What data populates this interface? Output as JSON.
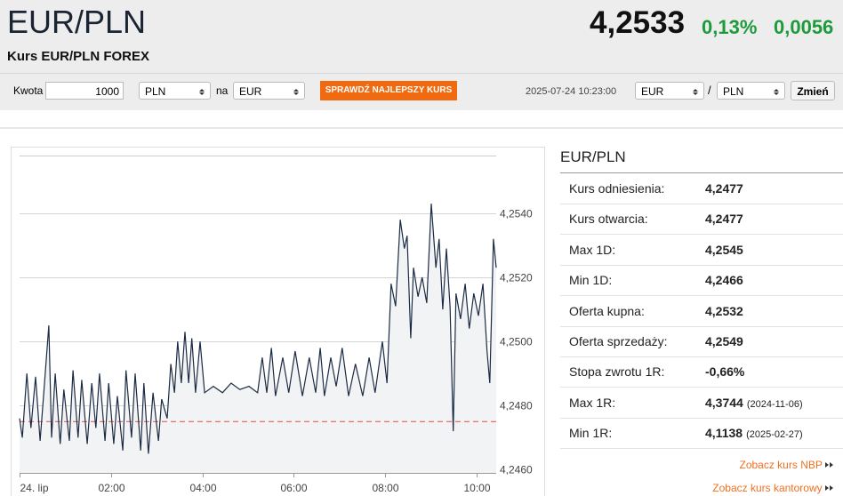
{
  "header": {
    "title": "EUR/PLN",
    "subtitle": "Kurs EUR/PLN FOREX",
    "price": "4,2533",
    "change_pct": "0,13%",
    "change": "0,0056"
  },
  "toolbar": {
    "amount_label": "Kwota",
    "amount": "1000",
    "from": "PLN",
    "to_label": "na",
    "to": "EUR",
    "button": "SPRAWDŹ NAJLEPSZY KURS",
    "timestamp": "2025-07-24 10:23:00",
    "pair_base": "EUR",
    "separator": "/",
    "pair_quote": "PLN",
    "switch_button": "Zmień"
  },
  "chart_data": {
    "type": "line",
    "color": "#1c2b44",
    "area_color": "#f2f3f5",
    "grid": true,
    "x": [
      0,
      0.06,
      0.16,
      0.25,
      0.35,
      0.45,
      0.54,
      0.64,
      0.7,
      0.78,
      0.89,
      0.97,
      1.09,
      1.17,
      1.28,
      1.36,
      1.48,
      1.58,
      1.67,
      1.75,
      1.87,
      1.95,
      2.06,
      2.14,
      2.26,
      2.33,
      2.45,
      2.53,
      2.65,
      2.72,
      2.82,
      2.92,
      3.04,
      3.11,
      3.23,
      3.31,
      3.39,
      3.46,
      3.54,
      3.62,
      3.7,
      3.77,
      3.85,
      3.95,
      4.05,
      4.24,
      4.44,
      4.63,
      4.82,
      5.02,
      5.21,
      5.31,
      5.41,
      5.51,
      5.6,
      5.76,
      5.89,
      6.03,
      6.19,
      6.34,
      6.48,
      6.58,
      6.67,
      6.81,
      6.93,
      7.06,
      7.2,
      7.35,
      7.51,
      7.65,
      7.78,
      7.94,
      8.04,
      8.13,
      8.23,
      8.33,
      8.42,
      8.48,
      8.56,
      8.62,
      8.72,
      8.81,
      8.91,
      9.01,
      9.11,
      9.18,
      9.26,
      9.34,
      9.42,
      9.49,
      9.55,
      9.65,
      9.75,
      9.84,
      9.94,
      10.04,
      10.14,
      10.23,
      10.29,
      10.37,
      10.43
    ],
    "values": [
      4.2476,
      4.247,
      4.249,
      4.2473,
      4.2489,
      4.2469,
      4.2486,
      4.2505,
      4.247,
      4.249,
      4.2468,
      4.2485,
      4.2469,
      4.2491,
      4.247,
      4.2488,
      4.2468,
      4.2487,
      4.2473,
      4.249,
      4.2469,
      4.2487,
      4.2468,
      4.2483,
      4.2466,
      4.2491,
      4.247,
      4.249,
      4.2466,
      4.2487,
      4.2465,
      4.2484,
      4.2469,
      4.2482,
      4.2476,
      4.2493,
      4.2484,
      4.25,
      4.2487,
      4.2503,
      4.2487,
      4.2501,
      4.2484,
      4.25,
      4.2484,
      4.2486,
      4.2484,
      4.2487,
      4.2485,
      4.2486,
      4.2484,
      4.2495,
      4.2484,
      4.2498,
      4.2483,
      4.2495,
      4.2484,
      4.2497,
      4.2483,
      4.2495,
      4.2484,
      4.2498,
      4.2483,
      4.2495,
      4.2486,
      4.2498,
      4.2483,
      4.2493,
      4.2483,
      4.2495,
      4.2484,
      4.25,
      4.2487,
      4.2518,
      4.2511,
      4.2538,
      4.2529,
      4.2533,
      4.2501,
      4.2523,
      4.2514,
      4.252,
      4.2512,
      4.2543,
      4.2523,
      4.2532,
      4.251,
      4.2529,
      4.2511,
      4.2472,
      4.2515,
      4.2507,
      4.2518,
      4.2504,
      4.2515,
      4.2508,
      4.2518,
      4.2497,
      4.2487,
      4.2532,
      4.2523
    ],
    "ref_line": 4.2475,
    "ref_color": "#e8605c",
    "xlim": [
      0,
      10.43
    ],
    "ylim": [
      4.2459,
      4.2558
    ],
    "xticks": [
      {
        "value": 0,
        "label": "24. lip"
      },
      {
        "value": 2,
        "label": "02:00"
      },
      {
        "value": 4,
        "label": "04:00"
      },
      {
        "value": 6,
        "label": "06:00"
      },
      {
        "value": 8,
        "label": "08:00"
      },
      {
        "value": 10,
        "label": "10:00"
      }
    ],
    "yticks": [
      {
        "value": 4.246,
        "label": "4,2460"
      },
      {
        "value": 4.248,
        "label": "4,2480"
      },
      {
        "value": 4.25,
        "label": "4,2500"
      },
      {
        "value": 4.252,
        "label": "4,2520"
      },
      {
        "value": 4.254,
        "label": "4,2540"
      }
    ]
  },
  "panel": {
    "title": "EUR/PLN",
    "rows": [
      {
        "label": "Kurs odniesienia:",
        "value": "4,2477"
      },
      {
        "label": "Kurs otwarcia:",
        "value": "4,2477"
      },
      {
        "label": "Max 1D:",
        "value": "4,2545"
      },
      {
        "label": "Min 1D:",
        "value": "4,2466"
      },
      {
        "label": "Oferta kupna:",
        "value": "4,2532"
      },
      {
        "label": "Oferta sprzedaży:",
        "value": "4,2549"
      },
      {
        "label": "Stopa zwrotu 1R:",
        "value": "-0,66%"
      },
      {
        "label": "Max 1R:",
        "value": "4,3744",
        "date": "(2024-11-06)"
      },
      {
        "label": "Min 1R:",
        "value": "4,1138",
        "date": "(2025-02-27)"
      }
    ],
    "links": [
      "Zobacz kurs NBP",
      "Zobacz kurs kantorowy"
    ]
  }
}
